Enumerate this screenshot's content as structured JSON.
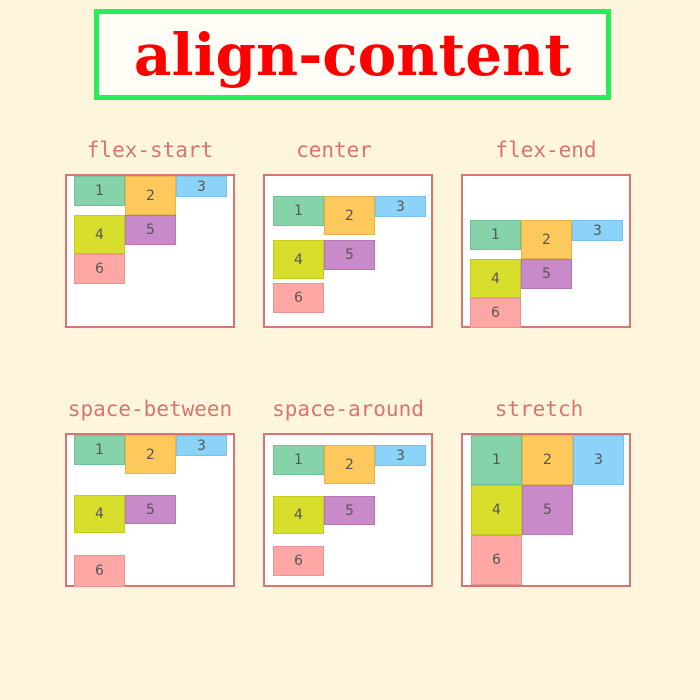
{
  "title": "align-content",
  "panels": [
    {
      "label": "flex-start"
    },
    {
      "label": "center"
    },
    {
      "label": "flex-end"
    },
    {
      "label": "space-between"
    },
    {
      "label": "space-around"
    },
    {
      "label": "stretch"
    }
  ],
  "items": [
    "1",
    "2",
    "3",
    "4",
    "5",
    "6"
  ],
  "colors": {
    "background": "#fdf6dc",
    "title": "#ff0000",
    "title_border": "#27ee55",
    "label": "#d9756e",
    "panel_border": "#d87474",
    "item1": "#86d3a9",
    "item2": "#fec95c",
    "item3": "#8cd3f9",
    "item4": "#d7df2c",
    "item5": "#c98ac9",
    "item6": "#fea7a4"
  }
}
